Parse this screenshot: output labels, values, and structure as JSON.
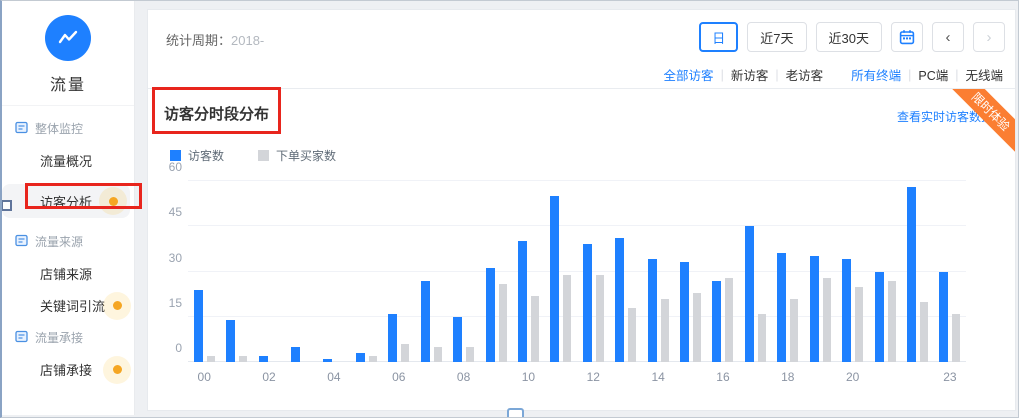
{
  "colors": {
    "accent_blue": "#1e80ff",
    "bar_gray": "#d3d5d9",
    "ribbon_orange": "#fb7e32",
    "dot_orange": "#f5a623",
    "annotation_red": "#e8251d"
  },
  "sidebar": {
    "app_label": "流量",
    "items": [
      {
        "label": "整体监控",
        "type": "group",
        "icon": "doc-icon",
        "active": false,
        "dot": false
      },
      {
        "label": "流量概况",
        "type": "sub",
        "active": false,
        "dot": false
      },
      {
        "label": "访客分析",
        "type": "sub",
        "active": true,
        "dot": true
      },
      {
        "label": "流量来源",
        "type": "group",
        "icon": "doc-icon",
        "active": false,
        "dot": false
      },
      {
        "label": "店铺来源",
        "type": "sub",
        "active": false,
        "dot": false
      },
      {
        "label": "关键词引流",
        "type": "sub",
        "active": false,
        "dot": true
      },
      {
        "label": "流量承接",
        "type": "group",
        "icon": "doc-icon",
        "active": false,
        "dot": false
      },
      {
        "label": "店铺承接",
        "type": "sub",
        "active": false,
        "dot": true
      }
    ]
  },
  "header": {
    "period_label": "统计周期：",
    "period_value": "2018-",
    "range_buttons": [
      {
        "label": "日",
        "selected": true
      },
      {
        "label": "近7天",
        "selected": false
      },
      {
        "label": "近30天",
        "selected": false
      }
    ],
    "prev_glyph": "‹",
    "next_glyph": "›"
  },
  "filters": {
    "visitor": [
      {
        "label": "全部访客",
        "active": true
      },
      {
        "label": "新访客",
        "active": false
      },
      {
        "label": "老访客",
        "active": false
      }
    ],
    "terminal": [
      {
        "label": "所有终端",
        "active": true
      },
      {
        "label": "PC端",
        "active": false
      },
      {
        "label": "无线端",
        "active": false
      }
    ]
  },
  "chart_card": {
    "title": "访客分时段分布",
    "realtime_link": "查看实时访客数据",
    "ribbon": "限时体验"
  },
  "chart_data": {
    "type": "bar",
    "title": "访客分时段分布",
    "x": [
      "00",
      "01",
      "02",
      "03",
      "04",
      "05",
      "06",
      "07",
      "08",
      "09",
      "10",
      "11",
      "12",
      "13",
      "14",
      "15",
      "16",
      "17",
      "18",
      "19",
      "20",
      "21",
      "22",
      "23"
    ],
    "x_tick_display": [
      "00",
      "",
      "02",
      "",
      "04",
      "",
      "06",
      "",
      "08",
      "",
      "10",
      "",
      "12",
      "",
      "14",
      "",
      "16",
      "",
      "18",
      "",
      "20",
      "",
      "",
      "23"
    ],
    "series": [
      {
        "name": "访客数",
        "color": "#1e80ff",
        "values": [
          24,
          14,
          2,
          5,
          1,
          3,
          16,
          27,
          15,
          31,
          40,
          55,
          39,
          41,
          34,
          33,
          27,
          45,
          36,
          35,
          34,
          30,
          58,
          30
        ]
      },
      {
        "name": "下单买家数",
        "color": "#d3d5d9",
        "values": [
          2,
          2,
          0,
          0,
          0,
          2,
          6,
          5,
          5,
          26,
          22,
          29,
          29,
          18,
          21,
          23,
          28,
          16,
          21,
          28,
          25,
          27,
          20,
          16
        ]
      }
    ],
    "ylim": [
      0,
      60
    ],
    "yticks": [
      0,
      15,
      30,
      45,
      60
    ],
    "grid": true,
    "legend_position": "top-left"
  }
}
